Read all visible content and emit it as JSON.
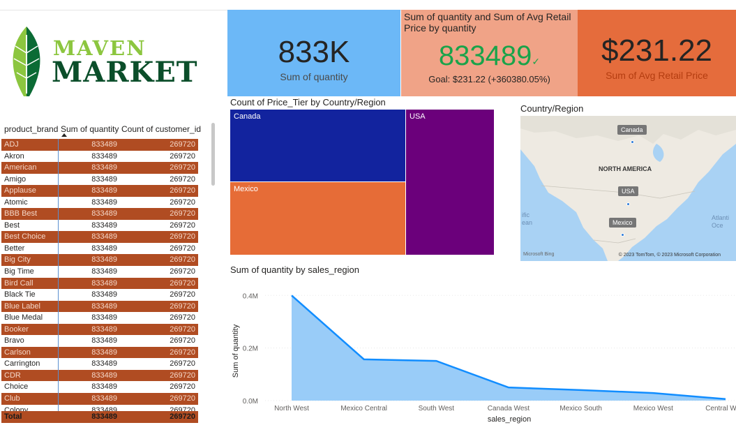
{
  "logo": {
    "line1": "MAVEN",
    "line2": "MARKET"
  },
  "table": {
    "headers": [
      "product_brand",
      "Sum of quantity",
      "Count of customer_id"
    ],
    "rows": [
      [
        "ADJ",
        "833489",
        "269720"
      ],
      [
        "Akron",
        "833489",
        "269720"
      ],
      [
        "American",
        "833489",
        "269720"
      ],
      [
        "Amigo",
        "833489",
        "269720"
      ],
      [
        "Applause",
        "833489",
        "269720"
      ],
      [
        "Atomic",
        "833489",
        "269720"
      ],
      [
        "BBB Best",
        "833489",
        "269720"
      ],
      [
        "Best",
        "833489",
        "269720"
      ],
      [
        "Best Choice",
        "833489",
        "269720"
      ],
      [
        "Better",
        "833489",
        "269720"
      ],
      [
        "Big City",
        "833489",
        "269720"
      ],
      [
        "Big Time",
        "833489",
        "269720"
      ],
      [
        "Bird Call",
        "833489",
        "269720"
      ],
      [
        "Black Tie",
        "833489",
        "269720"
      ],
      [
        "Blue Label",
        "833489",
        "269720"
      ],
      [
        "Blue Medal",
        "833489",
        "269720"
      ],
      [
        "Booker",
        "833489",
        "269720"
      ],
      [
        "Bravo",
        "833489",
        "269720"
      ],
      [
        "Carlson",
        "833489",
        "269720"
      ],
      [
        "Carrington",
        "833489",
        "269720"
      ],
      [
        "CDR",
        "833489",
        "269720"
      ],
      [
        "Choice",
        "833489",
        "269720"
      ],
      [
        "Club",
        "833489",
        "269720"
      ],
      [
        "Colony",
        "833489",
        "269720"
      ]
    ],
    "total": [
      "Total",
      "833489",
      "269720"
    ]
  },
  "kpi1": {
    "value": "833K",
    "label": "Sum of quantity"
  },
  "kpi2": {
    "title": "Sum of quantity and Sum of Avg Retail Price by quantity",
    "value": "833489",
    "goal": "Goal: $231.22 (+360380.05%)"
  },
  "kpi3": {
    "value": "$231.22",
    "label": "Sum of Avg Retail Price"
  },
  "treemap": {
    "title": "Count of Price_Tier by Country/Region",
    "cells": [
      {
        "label": "Canada",
        "color": "#12239e"
      },
      {
        "label": "Mexico",
        "color": "#e66c37"
      },
      {
        "label": "USA",
        "color": "#6b007b"
      }
    ]
  },
  "map": {
    "title": "Country/Region",
    "region": "NORTH AMERICA",
    "labels": [
      "Canada",
      "USA",
      "Mexico"
    ],
    "ocean_left": "ific\nean",
    "ocean_right": "Atlanti\nOce",
    "copyright": "© 2023 TomTom, © 2023 Microsoft Corporation",
    "bing": "Microsoft Bing"
  },
  "chart_data": {
    "type": "area",
    "title": "Sum of quantity by sales_region",
    "xlabel": "sales_region",
    "ylabel": "Sum of quantity",
    "categories": [
      "North West",
      "Mexico Central",
      "South West",
      "Canada West",
      "Mexico South",
      "Mexico West",
      "Central West"
    ],
    "values": [
      400000,
      157000,
      151000,
      50000,
      40000,
      29000,
      6000
    ],
    "yticks": [
      "0.0M",
      "0.2M",
      "0.4M"
    ],
    "ylim": [
      0,
      430000
    ],
    "line_color": "#118dff",
    "fill_color": "#99ccf8"
  }
}
